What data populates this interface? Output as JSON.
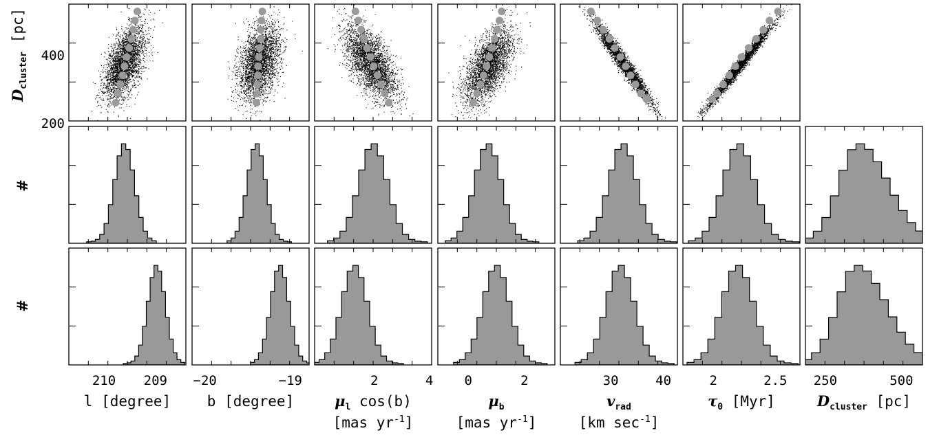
{
  "chart_data": [
    {
      "type": "scatter",
      "ylabel": "D",
      "ylabel_sub": "cluster",
      "ylabel_unit": "[pc]",
      "ylim": [
        200,
        520
      ],
      "yticks": [
        "200",
        "400"
      ],
      "panels": [
        {
          "param": "l",
          "xlim": [
            210.55,
            208.55
          ],
          "mean": [
            209.6,
            360
          ],
          "sigma": [
            0.17,
            50
          ],
          "rho": -0.55,
          "trend": [
            [
              209.75,
              250
            ],
            [
              209.71,
              275
            ],
            [
              209.67,
              300
            ],
            [
              209.63,
              325
            ],
            [
              209.6,
              350
            ],
            [
              209.56,
              375
            ],
            [
              209.52,
              400
            ],
            [
              209.48,
              425
            ],
            [
              209.45,
              450
            ],
            [
              209.42,
              475
            ],
            [
              209.38,
              500
            ]
          ]
        },
        {
          "param": "b",
          "xlim": [
            -20.35,
            -18.95
          ],
          "mean": [
            -19.55,
            360
          ],
          "sigma": [
            0.12,
            50
          ],
          "rho": 0.35,
          "trend": [
            [
              -19.58,
              250
            ],
            [
              -19.57,
              275
            ],
            [
              -19.57,
              300
            ],
            [
              -19.56,
              325
            ],
            [
              -19.56,
              350
            ],
            [
              -19.55,
              375
            ],
            [
              -19.54,
              400
            ],
            [
              -19.53,
              425
            ],
            [
              -19.53,
              450
            ],
            [
              -19.52,
              475
            ],
            [
              -19.51,
              500
            ]
          ]
        },
        {
          "param": "mu_l",
          "xlim": [
            -0.1,
            4.0
          ],
          "mean": [
            1.85,
            360
          ],
          "sigma": [
            0.45,
            50
          ],
          "rho": -0.6,
          "trend": [
            [
              2.5,
              250
            ],
            [
              2.36,
              275
            ],
            [
              2.23,
              300
            ],
            [
              2.1,
              325
            ],
            [
              1.97,
              350
            ],
            [
              1.85,
              375
            ],
            [
              1.74,
              400
            ],
            [
              1.63,
              425
            ],
            [
              1.53,
              450
            ],
            [
              1.43,
              475
            ],
            [
              1.33,
              500
            ]
          ]
        },
        {
          "param": "mu_b",
          "xlim": [
            -0.5,
            3.0
          ],
          "mean": [
            1.0,
            350
          ],
          "sigma": [
            0.35,
            50
          ],
          "rho": 0.6,
          "trend": [
            [
              0.55,
              250
            ],
            [
              0.67,
              275
            ],
            [
              0.77,
              300
            ],
            [
              0.87,
              325
            ],
            [
              0.96,
              350
            ],
            [
              1.04,
              375
            ],
            [
              1.12,
              400
            ],
            [
              1.2,
              425
            ],
            [
              1.27,
              450
            ],
            [
              1.34,
              475
            ],
            [
              1.41,
              500
            ]
          ]
        },
        {
          "param": "v_rad",
          "xlim": [
            21.0,
            42.5
          ],
          "mean": [
            32.5,
            360
          ],
          "sigma": [
            2.6,
            55
          ],
          "rho": -0.97,
          "trend": [
            [
              36.8,
              260
            ],
            [
              35.8,
              275
            ],
            [
              34.8,
              300
            ],
            [
              33.9,
              325
            ],
            [
              33.0,
              350
            ],
            [
              32.0,
              375
            ],
            [
              31.0,
              400
            ],
            [
              30.0,
              425
            ],
            [
              28.9,
              450
            ],
            [
              27.8,
              475
            ],
            [
              26.6,
              500
            ]
          ]
        },
        {
          "param": "tau_0",
          "xlim": [
            1.82,
            2.78
          ],
          "mean": [
            2.28,
            350
          ],
          "sigma": [
            0.13,
            55
          ],
          "rho": 0.985,
          "trend": [
            [
              2.06,
              260
            ],
            [
              2.1,
              275
            ],
            [
              2.15,
              300
            ],
            [
              2.2,
              325
            ],
            [
              2.25,
              350
            ],
            [
              2.3,
              375
            ],
            [
              2.36,
              400
            ],
            [
              2.42,
              425
            ],
            [
              2.48,
              450
            ],
            [
              2.53,
              475
            ],
            [
              2.6,
              500
            ]
          ]
        }
      ]
    },
    {
      "type": "bar",
      "ylabel": "#",
      "panels": [
        {
          "param": "l",
          "xlim": [
            210.55,
            208.55
          ],
          "mean": 209.6,
          "sigma": 0.17
        },
        {
          "param": "b",
          "xlim": [
            -20.35,
            -18.95
          ],
          "mean": -19.58,
          "sigma": 0.11
        },
        {
          "param": "mu_l",
          "xlim": [
            -0.1,
            4.0
          ],
          "mean": 1.95,
          "sigma": 0.5
        },
        {
          "param": "mu_b",
          "xlim": [
            -0.5,
            3.0
          ],
          "mean": 1.0,
          "sigma": 0.4
        },
        {
          "param": "v_rad",
          "xlim": [
            21.0,
            42.5
          ],
          "mean": 32.5,
          "sigma": 2.6
        },
        {
          "param": "tau_0",
          "xlim": [
            1.82,
            2.78
          ],
          "mean": 2.28,
          "sigma": 0.13
        },
        {
          "param": "D_cluster",
          "xlim": [
            200,
            530
          ],
          "mean": 350,
          "sigma": 55,
          "skew": true
        }
      ]
    },
    {
      "type": "bar",
      "ylabel": "#",
      "panels": [
        {
          "param": "l",
          "xlim": [
            210.55,
            208.55
          ],
          "mean": 209.05,
          "sigma": 0.15
        },
        {
          "param": "b",
          "xlim": [
            -20.35,
            -18.95
          ],
          "mean": -19.3,
          "sigma": 0.11
        },
        {
          "param": "mu_l",
          "xlim": [
            -0.1,
            4.0
          ],
          "mean": 1.3,
          "sigma": 0.45
        },
        {
          "param": "mu_b",
          "xlim": [
            -0.5,
            3.0
          ],
          "mean": 1.25,
          "sigma": 0.4
        },
        {
          "param": "v_rad",
          "xlim": [
            21.0,
            42.5
          ],
          "mean": 32.0,
          "sigma": 2.6
        },
        {
          "param": "tau_0",
          "xlim": [
            1.82,
            2.78
          ],
          "mean": 2.27,
          "sigma": 0.13
        },
        {
          "param": "D_cluster",
          "xlim": [
            200,
            530
          ],
          "mean": 345,
          "sigma": 55,
          "skew": true
        }
      ]
    }
  ],
  "x_axes": [
    {
      "ticks": [
        "210",
        "209"
      ],
      "label": "l [degree]"
    },
    {
      "ticks": [
        "−20",
        "−19"
      ],
      "label": "b [degree]"
    },
    {
      "ticks": [
        "2",
        "4"
      ],
      "label_sym": "μ",
      "label_sub": "l",
      "label_rest": " cos(b)",
      "label_line2": "[mas yr",
      "label_line2_sup": "-1",
      "label_line2_end": "]"
    },
    {
      "ticks": [
        "0",
        "2"
      ],
      "label_sym": "μ",
      "label_sub": "b",
      "label_line2": "[mas yr",
      "label_line2_sup": "-1",
      "label_line2_end": "]"
    },
    {
      "ticks": [
        "30",
        "40"
      ],
      "label_sym": "v",
      "label_sub": "rad",
      "label_line2": "[km sec",
      "label_line2_sup": "-1",
      "label_line2_end": "]"
    },
    {
      "ticks": [
        "2",
        "2.5"
      ],
      "label_sym": "τ",
      "label_sub": "0",
      "label_rest": " [Myr]"
    },
    {
      "ticks": [
        "250",
        "500"
      ],
      "label_sym": "D",
      "label_sub": "cluster",
      "label_rest": " [pc]"
    }
  ],
  "colors": {
    "points": "#000000",
    "trend": "#9a9a9a",
    "hist_fill": "#999999",
    "frame": "#000000"
  }
}
